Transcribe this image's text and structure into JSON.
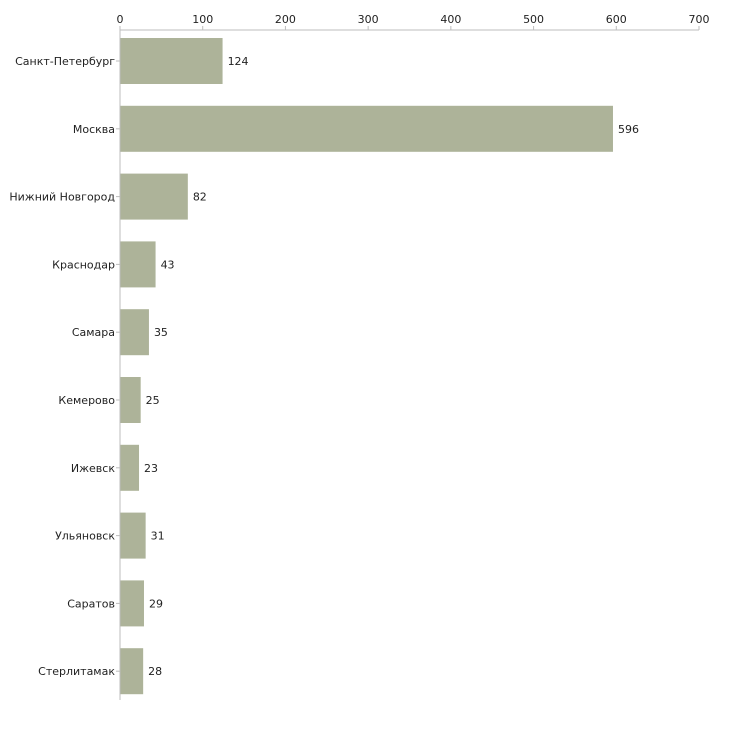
{
  "chart_data": {
    "type": "bar",
    "orientation": "horizontal",
    "title": "",
    "xlabel": "",
    "ylabel": "",
    "xlim": [
      0,
      700
    ],
    "xticks": [
      0,
      100,
      200,
      300,
      400,
      500,
      600,
      700
    ],
    "categories": [
      "Санкт-Петербург",
      "Москва",
      "Нижний Новгород",
      "Краснодар",
      "Самара",
      "Кемерово",
      "Ижевск",
      "Ульяновск",
      "Саратов",
      "Стерлитамак"
    ],
    "values": [
      124,
      596,
      82,
      43,
      35,
      25,
      23,
      31,
      29,
      28
    ],
    "bar_color": "#adb399",
    "axis_color": "#bdbdbd",
    "grid": false,
    "legend": "none"
  }
}
